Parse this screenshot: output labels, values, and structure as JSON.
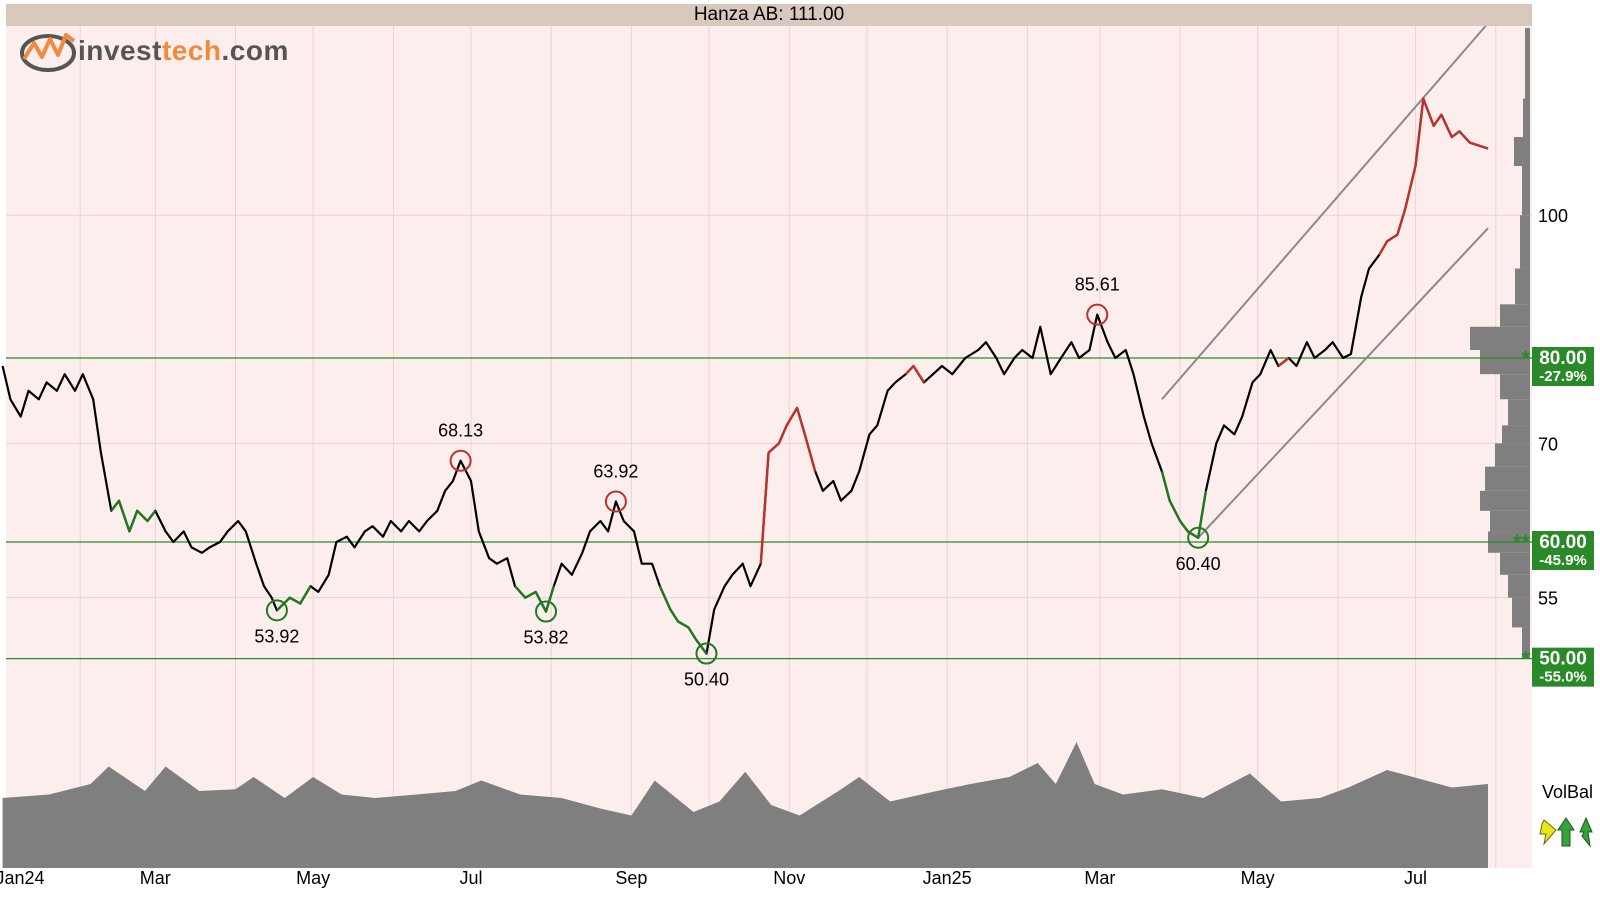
{
  "header": {
    "title": "Hanza AB: 111.00",
    "logo_part1": "invest",
    "logo_part2": "tech",
    "logo_part3": ".com"
  },
  "colors": {
    "background": "#fdeeee",
    "title_bar": "#d9c8bd",
    "price_line": "#000000",
    "buy_signal": "#1f7a1f",
    "sell_signal": "#c0302a",
    "support": "#2a8a2a",
    "channel": "#8a8a8a",
    "volume": "#7f7f7f",
    "logo_orange": "#f08a3c"
  },
  "volume_label": "VolBal",
  "chart_data": {
    "type": "line",
    "title": "Hanza AB: 111.00",
    "x_ticks": [
      "Jan24",
      "Mar",
      "May",
      "Jul",
      "Sep",
      "Nov",
      "Jan25",
      "Mar",
      "May",
      "Jul"
    ],
    "y_ticks": [
      55,
      70,
      100
    ],
    "y_scale": "log",
    "ylim": [
      46,
      134
    ],
    "last_price": 111.0,
    "support_levels": [
      {
        "value": 80.0,
        "label": "80.00",
        "pct": "-27.9%",
        "marker": "*"
      },
      {
        "value": 60.0,
        "label": "60.00",
        "pct": "-45.9%",
        "marker": "**"
      },
      {
        "value": 50.0,
        "label": "50.00",
        "pct": "-55.0%",
        "marker": "*"
      }
    ],
    "annotations": [
      {
        "label": "53.92",
        "date": "2024-04-17",
        "value": 53.92,
        "type": "low"
      },
      {
        "label": "68.13",
        "date": "2024-06-27",
        "value": 68.13,
        "type": "high"
      },
      {
        "label": "53.82",
        "date": "2024-07-30",
        "value": 53.82,
        "type": "low"
      },
      {
        "label": "63.92",
        "date": "2024-08-26",
        "value": 63.92,
        "type": "high"
      },
      {
        "label": "50.40",
        "date": "2024-09-30",
        "value": 50.4,
        "type": "low"
      },
      {
        "label": "85.61",
        "date": "2025-02-28",
        "value": 85.61,
        "type": "high"
      },
      {
        "label": "60.40",
        "date": "2025-04-08",
        "value": 60.4,
        "type": "low"
      }
    ],
    "trend_channel": {
      "lower": [
        [
          "2025-04-08",
          60.4
        ],
        [
          "2025-07-29",
          98
        ]
      ],
      "upper": [
        [
          "2025-03-25",
          75
        ],
        [
          "2025-07-29",
          135
        ]
      ]
    },
    "price": [
      [
        "2024-01-02",
        79
      ],
      [
        "2024-01-05",
        75
      ],
      [
        "2024-01-09",
        73
      ],
      [
        "2024-01-12",
        76
      ],
      [
        "2024-01-16",
        75
      ],
      [
        "2024-01-19",
        77
      ],
      [
        "2024-01-23",
        76
      ],
      [
        "2024-01-26",
        78
      ],
      [
        "2024-01-30",
        76
      ],
      [
        "2024-02-02",
        78
      ],
      [
        "2024-02-06",
        75
      ],
      [
        "2024-02-09",
        69
      ],
      [
        "2024-02-13",
        63
      ],
      [
        "2024-02-16",
        64
      ],
      [
        "2024-02-20",
        61
      ],
      [
        "2024-02-23",
        63
      ],
      [
        "2024-02-27",
        62
      ],
      [
        "2024-03-01",
        63
      ],
      [
        "2024-03-05",
        61
      ],
      [
        "2024-03-08",
        60
      ],
      [
        "2024-03-12",
        61
      ],
      [
        "2024-03-15",
        59.5
      ],
      [
        "2024-03-19",
        59
      ],
      [
        "2024-03-22",
        59.5
      ],
      [
        "2024-03-26",
        60
      ],
      [
        "2024-03-29",
        61
      ],
      [
        "2024-04-02",
        62
      ],
      [
        "2024-04-05",
        61
      ],
      [
        "2024-04-09",
        58
      ],
      [
        "2024-04-12",
        56
      ],
      [
        "2024-04-15",
        55
      ],
      [
        "2024-04-17",
        53.92
      ],
      [
        "2024-04-22",
        55
      ],
      [
        "2024-04-26",
        54.5
      ],
      [
        "2024-04-30",
        56
      ],
      [
        "2024-05-03",
        55.5
      ],
      [
        "2024-05-07",
        57
      ],
      [
        "2024-05-10",
        60
      ],
      [
        "2024-05-14",
        60.5
      ],
      [
        "2024-05-17",
        59.5
      ],
      [
        "2024-05-21",
        61
      ],
      [
        "2024-05-24",
        61.5
      ],
      [
        "2024-05-28",
        60.5
      ],
      [
        "2024-05-31",
        62
      ],
      [
        "2024-06-04",
        61
      ],
      [
        "2024-06-07",
        62
      ],
      [
        "2024-06-11",
        61
      ],
      [
        "2024-06-14",
        62
      ],
      [
        "2024-06-18",
        63
      ],
      [
        "2024-06-21",
        65
      ],
      [
        "2024-06-24",
        66
      ],
      [
        "2024-06-27",
        68.13
      ],
      [
        "2024-07-01",
        66
      ],
      [
        "2024-07-04",
        61
      ],
      [
        "2024-07-08",
        58.5
      ],
      [
        "2024-07-11",
        58
      ],
      [
        "2024-07-15",
        58.5
      ],
      [
        "2024-07-18",
        56
      ],
      [
        "2024-07-22",
        55
      ],
      [
        "2024-07-26",
        55.5
      ],
      [
        "2024-07-30",
        53.82
      ],
      [
        "2024-08-02",
        56
      ],
      [
        "2024-08-05",
        58
      ],
      [
        "2024-08-09",
        57
      ],
      [
        "2024-08-13",
        59
      ],
      [
        "2024-08-16",
        61
      ],
      [
        "2024-08-20",
        62
      ],
      [
        "2024-08-23",
        61
      ],
      [
        "2024-08-26",
        63.92
      ],
      [
        "2024-08-29",
        62
      ],
      [
        "2024-09-02",
        61
      ],
      [
        "2024-09-05",
        58
      ],
      [
        "2024-09-09",
        58
      ],
      [
        "2024-09-12",
        56
      ],
      [
        "2024-09-16",
        54
      ],
      [
        "2024-09-19",
        53
      ],
      [
        "2024-09-23",
        52.5
      ],
      [
        "2024-09-26",
        51.5
      ],
      [
        "2024-09-30",
        50.4
      ],
      [
        "2024-10-03",
        54
      ],
      [
        "2024-10-07",
        56
      ],
      [
        "2024-10-10",
        57
      ],
      [
        "2024-10-14",
        58
      ],
      [
        "2024-10-17",
        56
      ],
      [
        "2024-10-21",
        58
      ],
      [
        "2024-10-24",
        69
      ],
      [
        "2024-10-28",
        70
      ],
      [
        "2024-10-31",
        72
      ],
      [
        "2024-11-04",
        74
      ],
      [
        "2024-11-07",
        71
      ],
      [
        "2024-11-11",
        67
      ],
      [
        "2024-11-14",
        65
      ],
      [
        "2024-11-18",
        66
      ],
      [
        "2024-11-21",
        64
      ],
      [
        "2024-11-25",
        65
      ],
      [
        "2024-11-28",
        67
      ],
      [
        "2024-12-02",
        71
      ],
      [
        "2024-12-05",
        72
      ],
      [
        "2024-12-09",
        76
      ],
      [
        "2024-12-12",
        77
      ],
      [
        "2024-12-16",
        78
      ],
      [
        "2024-12-19",
        79
      ],
      [
        "2024-12-23",
        77
      ],
      [
        "2024-12-30",
        79
      ],
      [
        "2025-01-03",
        78
      ],
      [
        "2025-01-08",
        80
      ],
      [
        "2025-01-13",
        81
      ],
      [
        "2025-01-16",
        82
      ],
      [
        "2025-01-20",
        80
      ],
      [
        "2025-01-23",
        78
      ],
      [
        "2025-01-27",
        80
      ],
      [
        "2025-01-30",
        81
      ],
      [
        "2025-02-03",
        80
      ],
      [
        "2025-02-06",
        84
      ],
      [
        "2025-02-10",
        78
      ],
      [
        "2025-02-14",
        80
      ],
      [
        "2025-02-18",
        82
      ],
      [
        "2025-02-21",
        80
      ],
      [
        "2025-02-25",
        81
      ],
      [
        "2025-02-28",
        85.61
      ],
      [
        "2025-03-04",
        82
      ],
      [
        "2025-03-07",
        80
      ],
      [
        "2025-03-11",
        81
      ],
      [
        "2025-03-14",
        78
      ],
      [
        "2025-03-18",
        73
      ],
      [
        "2025-03-21",
        70
      ],
      [
        "2025-03-25",
        67
      ],
      [
        "2025-03-28",
        64
      ],
      [
        "2025-04-01",
        62
      ],
      [
        "2025-04-04",
        61
      ],
      [
        "2025-04-08",
        60.4
      ],
      [
        "2025-04-11",
        65
      ],
      [
        "2025-04-15",
        70
      ],
      [
        "2025-04-18",
        72
      ],
      [
        "2025-04-22",
        71
      ],
      [
        "2025-04-25",
        73
      ],
      [
        "2025-04-29",
        77
      ],
      [
        "2025-05-02",
        78
      ],
      [
        "2025-05-06",
        81
      ],
      [
        "2025-05-09",
        79
      ],
      [
        "2025-05-13",
        80
      ],
      [
        "2025-05-16",
        79
      ],
      [
        "2025-05-20",
        82
      ],
      [
        "2025-05-23",
        80
      ],
      [
        "2025-05-27",
        81
      ],
      [
        "2025-05-30",
        82
      ],
      [
        "2025-06-03",
        80
      ],
      [
        "2025-06-06",
        80.5
      ],
      [
        "2025-06-10",
        88
      ],
      [
        "2025-06-13",
        92
      ],
      [
        "2025-06-17",
        94
      ],
      [
        "2025-06-20",
        96
      ],
      [
        "2025-06-24",
        97
      ],
      [
        "2025-06-27",
        101
      ],
      [
        "2025-07-01",
        108
      ],
      [
        "2025-07-04",
        120
      ],
      [
        "2025-07-08",
        115
      ],
      [
        "2025-07-11",
        117
      ],
      [
        "2025-07-15",
        113
      ],
      [
        "2025-07-18",
        114
      ],
      [
        "2025-07-22",
        112
      ],
      [
        "2025-07-29",
        111
      ]
    ],
    "signal_segments": [
      {
        "from": "2024-02-13",
        "to": "2024-03-01",
        "type": "buy"
      },
      {
        "from": "2024-04-17",
        "to": "2024-04-30",
        "type": "buy"
      },
      {
        "from": "2024-07-18",
        "to": "2024-08-02",
        "type": "buy"
      },
      {
        "from": "2024-09-12",
        "to": "2024-09-30",
        "type": "buy"
      },
      {
        "from": "2024-10-21",
        "to": "2024-11-11",
        "type": "sell"
      },
      {
        "from": "2024-12-16",
        "to": "2024-12-23",
        "type": "sell"
      },
      {
        "from": "2025-03-25",
        "to": "2025-04-11",
        "type": "buy"
      },
      {
        "from": "2025-05-09",
        "to": "2025-05-13",
        "type": "sell"
      },
      {
        "from": "2025-06-17",
        "to": "2025-07-29",
        "type": "sell"
      }
    ],
    "volume": [
      [
        "2024-01-02",
        40
      ],
      [
        "2024-01-20",
        42
      ],
      [
        "2024-02-05",
        48
      ],
      [
        "2024-02-12",
        58
      ],
      [
        "2024-02-26",
        44
      ],
      [
        "2024-03-05",
        58
      ],
      [
        "2024-03-18",
        44
      ],
      [
        "2024-04-01",
        45
      ],
      [
        "2024-04-08",
        52
      ],
      [
        "2024-04-20",
        40
      ],
      [
        "2024-05-01",
        52
      ],
      [
        "2024-05-12",
        42
      ],
      [
        "2024-05-25",
        40
      ],
      [
        "2024-06-10",
        42
      ],
      [
        "2024-06-25",
        44
      ],
      [
        "2024-07-05",
        50
      ],
      [
        "2024-07-20",
        42
      ],
      [
        "2024-08-05",
        40
      ],
      [
        "2024-08-20",
        34
      ],
      [
        "2024-09-01",
        30
      ],
      [
        "2024-09-10",
        50
      ],
      [
        "2024-09-25",
        32
      ],
      [
        "2024-10-05",
        38
      ],
      [
        "2024-10-15",
        55
      ],
      [
        "2024-10-25",
        36
      ],
      [
        "2024-11-05",
        30
      ],
      [
        "2024-11-20",
        44
      ],
      [
        "2024-11-28",
        52
      ],
      [
        "2024-12-10",
        38
      ],
      [
        "2024-12-28",
        44
      ],
      [
        "2025-01-10",
        48
      ],
      [
        "2025-01-25",
        52
      ],
      [
        "2025-02-05",
        60
      ],
      [
        "2025-02-12",
        48
      ],
      [
        "2025-02-20",
        72
      ],
      [
        "2025-02-27",
        48
      ],
      [
        "2025-03-10",
        42
      ],
      [
        "2025-03-25",
        45
      ],
      [
        "2025-04-10",
        40
      ],
      [
        "2025-04-28",
        54
      ],
      [
        "2025-05-10",
        38
      ],
      [
        "2025-05-25",
        40
      ],
      [
        "2025-06-05",
        46
      ],
      [
        "2025-06-20",
        56
      ],
      [
        "2025-07-05",
        50
      ],
      [
        "2025-07-15",
        46
      ],
      [
        "2025-07-29",
        48
      ]
    ],
    "volume_profile": [
      {
        "from": 120,
        "to": 134,
        "w": 0.05
      },
      {
        "from": 113,
        "to": 120,
        "w": 0.07
      },
      {
        "from": 108,
        "to": 113,
        "w": 0.16
      },
      {
        "from": 100,
        "to": 108,
        "w": 0.08
      },
      {
        "from": 92,
        "to": 100,
        "w": 0.1
      },
      {
        "from": 87,
        "to": 92,
        "w": 0.15
      },
      {
        "from": 84,
        "to": 87,
        "w": 0.3
      },
      {
        "from": 81,
        "to": 84,
        "w": 0.6
      },
      {
        "from": 78,
        "to": 81,
        "w": 0.5
      },
      {
        "from": 75,
        "to": 78,
        "w": 0.3
      },
      {
        "from": 72,
        "to": 75,
        "w": 0.22
      },
      {
        "from": 70,
        "to": 72,
        "w": 0.28
      },
      {
        "from": 67.5,
        "to": 70,
        "w": 0.35
      },
      {
        "from": 65,
        "to": 67.5,
        "w": 0.45
      },
      {
        "from": 63,
        "to": 65,
        "w": 0.5
      },
      {
        "from": 61,
        "to": 63,
        "w": 0.4
      },
      {
        "from": 59,
        "to": 61,
        "w": 0.42
      },
      {
        "from": 57,
        "to": 59,
        "w": 0.3
      },
      {
        "from": 55,
        "to": 57,
        "w": 0.22
      },
      {
        "from": 52.5,
        "to": 55,
        "w": 0.18
      },
      {
        "from": 50,
        "to": 52.5,
        "w": 0.08
      }
    ]
  }
}
